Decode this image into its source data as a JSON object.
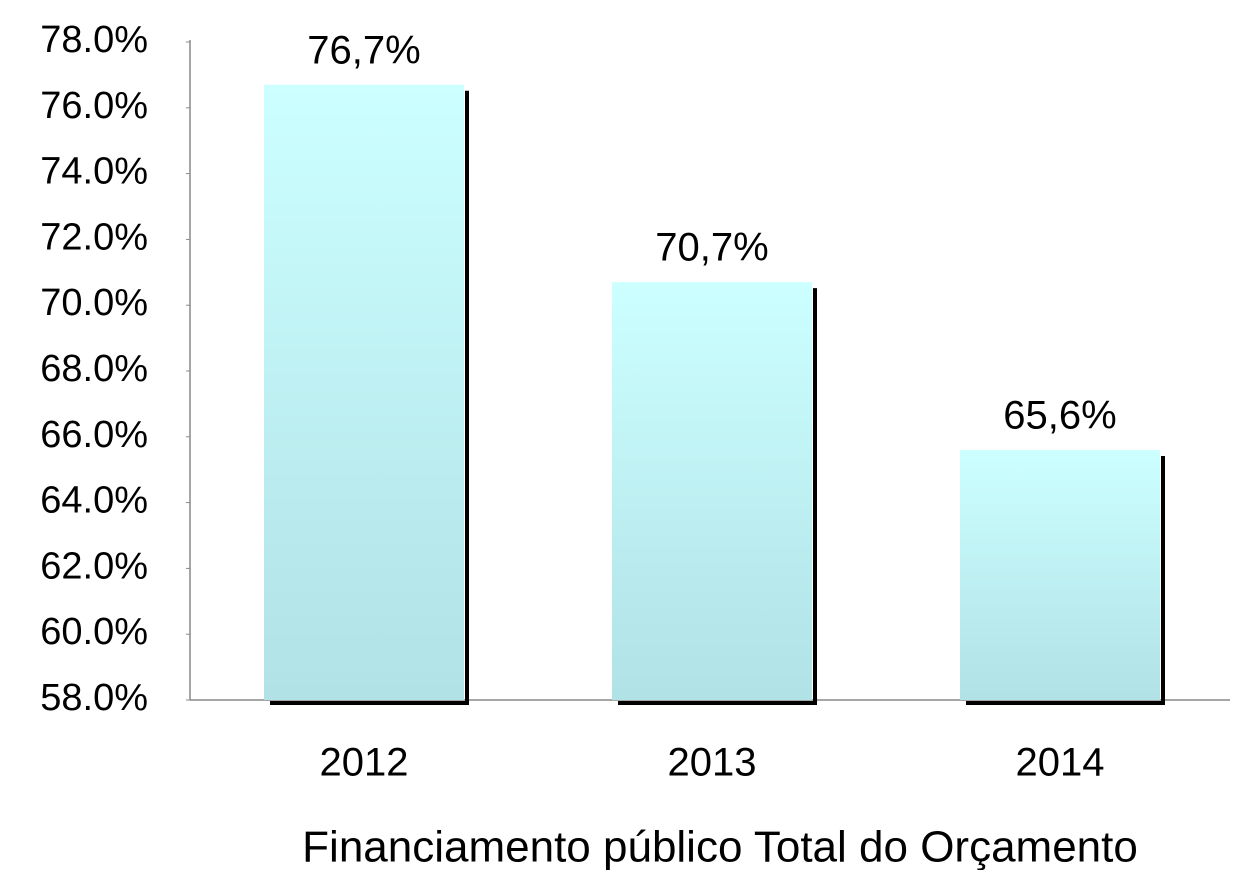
{
  "chart_data": {
    "type": "bar",
    "x_label": "Financiamento público Total do Orçamento",
    "categories": [
      "2012",
      "2013",
      "2014"
    ],
    "values": [
      76.7,
      70.7,
      65.6
    ],
    "value_labels": [
      "76,7%",
      "70,7%",
      "65,6%"
    ],
    "color": "#c8fbfd",
    "ylim": [
      58,
      78
    ],
    "yticks": [
      {
        "value": 58,
        "label": "58.0%"
      },
      {
        "value": 60,
        "label": "60.0%"
      },
      {
        "value": 62,
        "label": "62.0%"
      },
      {
        "value": 64,
        "label": "64.0%"
      },
      {
        "value": 66,
        "label": "66.0%"
      },
      {
        "value": 68,
        "label": "68.0%"
      },
      {
        "value": 70,
        "label": "70.0%"
      },
      {
        "value": 72,
        "label": "72.0%"
      },
      {
        "value": 74,
        "label": "74.0%"
      },
      {
        "value": 76,
        "label": "76.0%"
      },
      {
        "value": 78,
        "label": "78.0%"
      }
    ],
    "grid": false
  }
}
